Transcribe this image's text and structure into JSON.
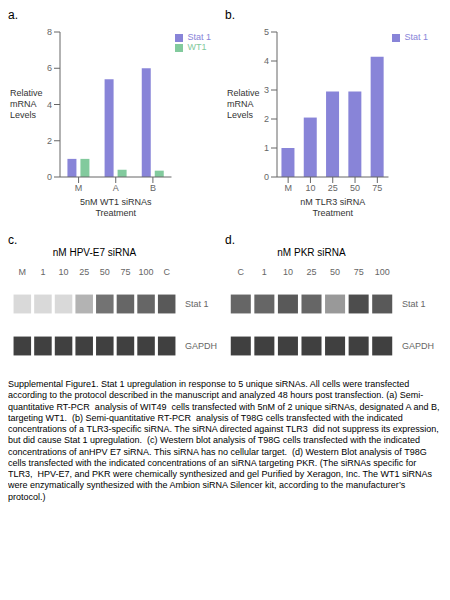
{
  "chart_data": [
    {
      "type": "bar",
      "panel_label": "a.",
      "categories": [
        "M",
        "A",
        "B"
      ],
      "series": [
        {
          "name": "Stat 1",
          "color": "#8884d8",
          "values": [
            1.0,
            5.4,
            6.0
          ]
        },
        {
          "name": "WT1",
          "color": "#82ca9d",
          "values": [
            1.0,
            0.4,
            0.35
          ]
        }
      ],
      "ylabel": "Relative\nmRNA\nLevels",
      "xlabel": "5nM WT1 siRNAs\nTreatment",
      "ylim": [
        0,
        8
      ],
      "yticks": [
        0,
        2,
        4,
        6,
        8
      ],
      "legend": "right"
    },
    {
      "type": "bar",
      "panel_label": "b.",
      "categories": [
        "M",
        "10",
        "25",
        "50",
        "75"
      ],
      "series": [
        {
          "name": "Stat 1",
          "color": "#8884d8",
          "values": [
            1.0,
            2.05,
            2.95,
            2.95,
            4.15
          ]
        }
      ],
      "ylabel": "Relative\nmRNA\nLevels",
      "xlabel": "nM TLR3 siRNA\nTreatment",
      "ylim": [
        0,
        5
      ],
      "yticks": [
        0,
        1,
        2,
        3,
        4,
        5
      ],
      "legend": "right"
    },
    {
      "type": "heatmap",
      "panel_label": "c.",
      "title": "nM HPV-E7 siRNA",
      "categories": [
        "M",
        "1",
        "10",
        "25",
        "50",
        "75",
        "100",
        "C"
      ],
      "series": [
        {
          "name": "Stat 1",
          "values": [
            0.15,
            0.15,
            0.15,
            0.3,
            0.55,
            0.6,
            0.6,
            0.65
          ]
        },
        {
          "name": "GAPDH",
          "values": [
            0.75,
            0.75,
            0.75,
            0.75,
            0.75,
            0.75,
            0.75,
            0.75
          ]
        }
      ],
      "zlim": [
        0,
        1
      ]
    },
    {
      "type": "heatmap",
      "panel_label": "d.",
      "title": "nM PKR siRNA",
      "categories": [
        "C",
        "1",
        "10",
        "25",
        "50",
        "75",
        "100"
      ],
      "series": [
        {
          "name": "Stat 1",
          "values": [
            0.6,
            0.6,
            0.65,
            0.6,
            0.4,
            0.7,
            0.65
          ]
        },
        {
          "name": "GAPDH",
          "values": [
            0.75,
            0.75,
            0.75,
            0.75,
            0.75,
            0.75,
            0.75
          ]
        }
      ],
      "zlim": [
        0,
        1
      ]
    }
  ],
  "caption": "Supplemental Figure1. Stat 1 upregulation in response to 5 unique siRNAs. All cells were transfected according to the protocol described in the manuscript and analyzed 48 hours post transfection. (a) Semi-quantitative RT-PCR  analysis of WIT49  cells transfected with 5nM of 2 unique siRNAs, designated A and B, targeting WT1.  (b) Semi-quantitative RT-PCR  analysis of T98G cells transfected with the indicated concentrations of a TLR3-specific siRNA. The siRNA directed against TLR3  did not suppress its expression, but did cause Stat 1 upregulation.  (c) Western blot analysis of T98G cells transfected with the indicated concentrations of anHPV E7 siRNA. This siRNA has no cellular target.  (d) Western Blot analysis of T98G cells transfected with the indicated concentrations of an siRNA targeting PKR. (The siRNAs specific for TLR3,  HPV-E7, and PKR were chemically synthesized and gel Purified by Xeragon, Inc. The WT1 siRNAs were enzymatically synthesized with the Ambion siRNA Silencer kit, according to the manufacturer’s protocol.)"
}
